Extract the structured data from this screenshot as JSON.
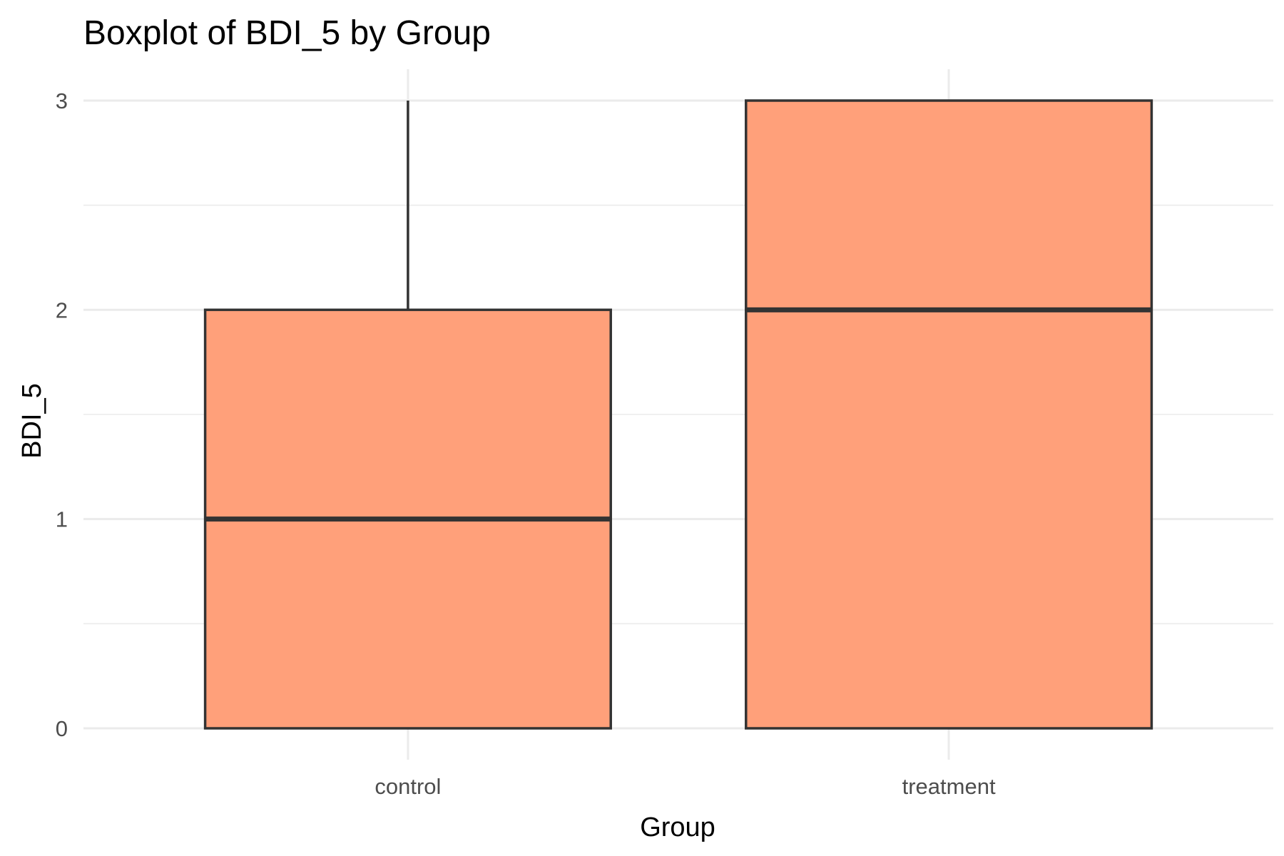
{
  "chart_data": {
    "type": "boxplot",
    "title": "Boxplot of BDI_5 by Group",
    "xlabel": "Group",
    "ylabel": "BDI_5",
    "categories": [
      "control",
      "treatment"
    ],
    "boxes": [
      {
        "group": "control",
        "whisker_low": 0,
        "q1": 0,
        "median": 1,
        "q3": 2,
        "whisker_high": 3
      },
      {
        "group": "treatment",
        "whisker_low": 0,
        "q1": 0,
        "median": 2,
        "q3": 3,
        "whisker_high": 3
      }
    ],
    "ylim": [
      -0.15,
      3.15
    ],
    "yticks": [
      0,
      1,
      2,
      3
    ],
    "yticks_minor": [
      0.5,
      1.5,
      2.5
    ],
    "grid": true,
    "legend": "none",
    "colors": {
      "box_fill": "#FFA07A",
      "box_stroke": "#333333",
      "grid": "#EBEBEB"
    }
  }
}
